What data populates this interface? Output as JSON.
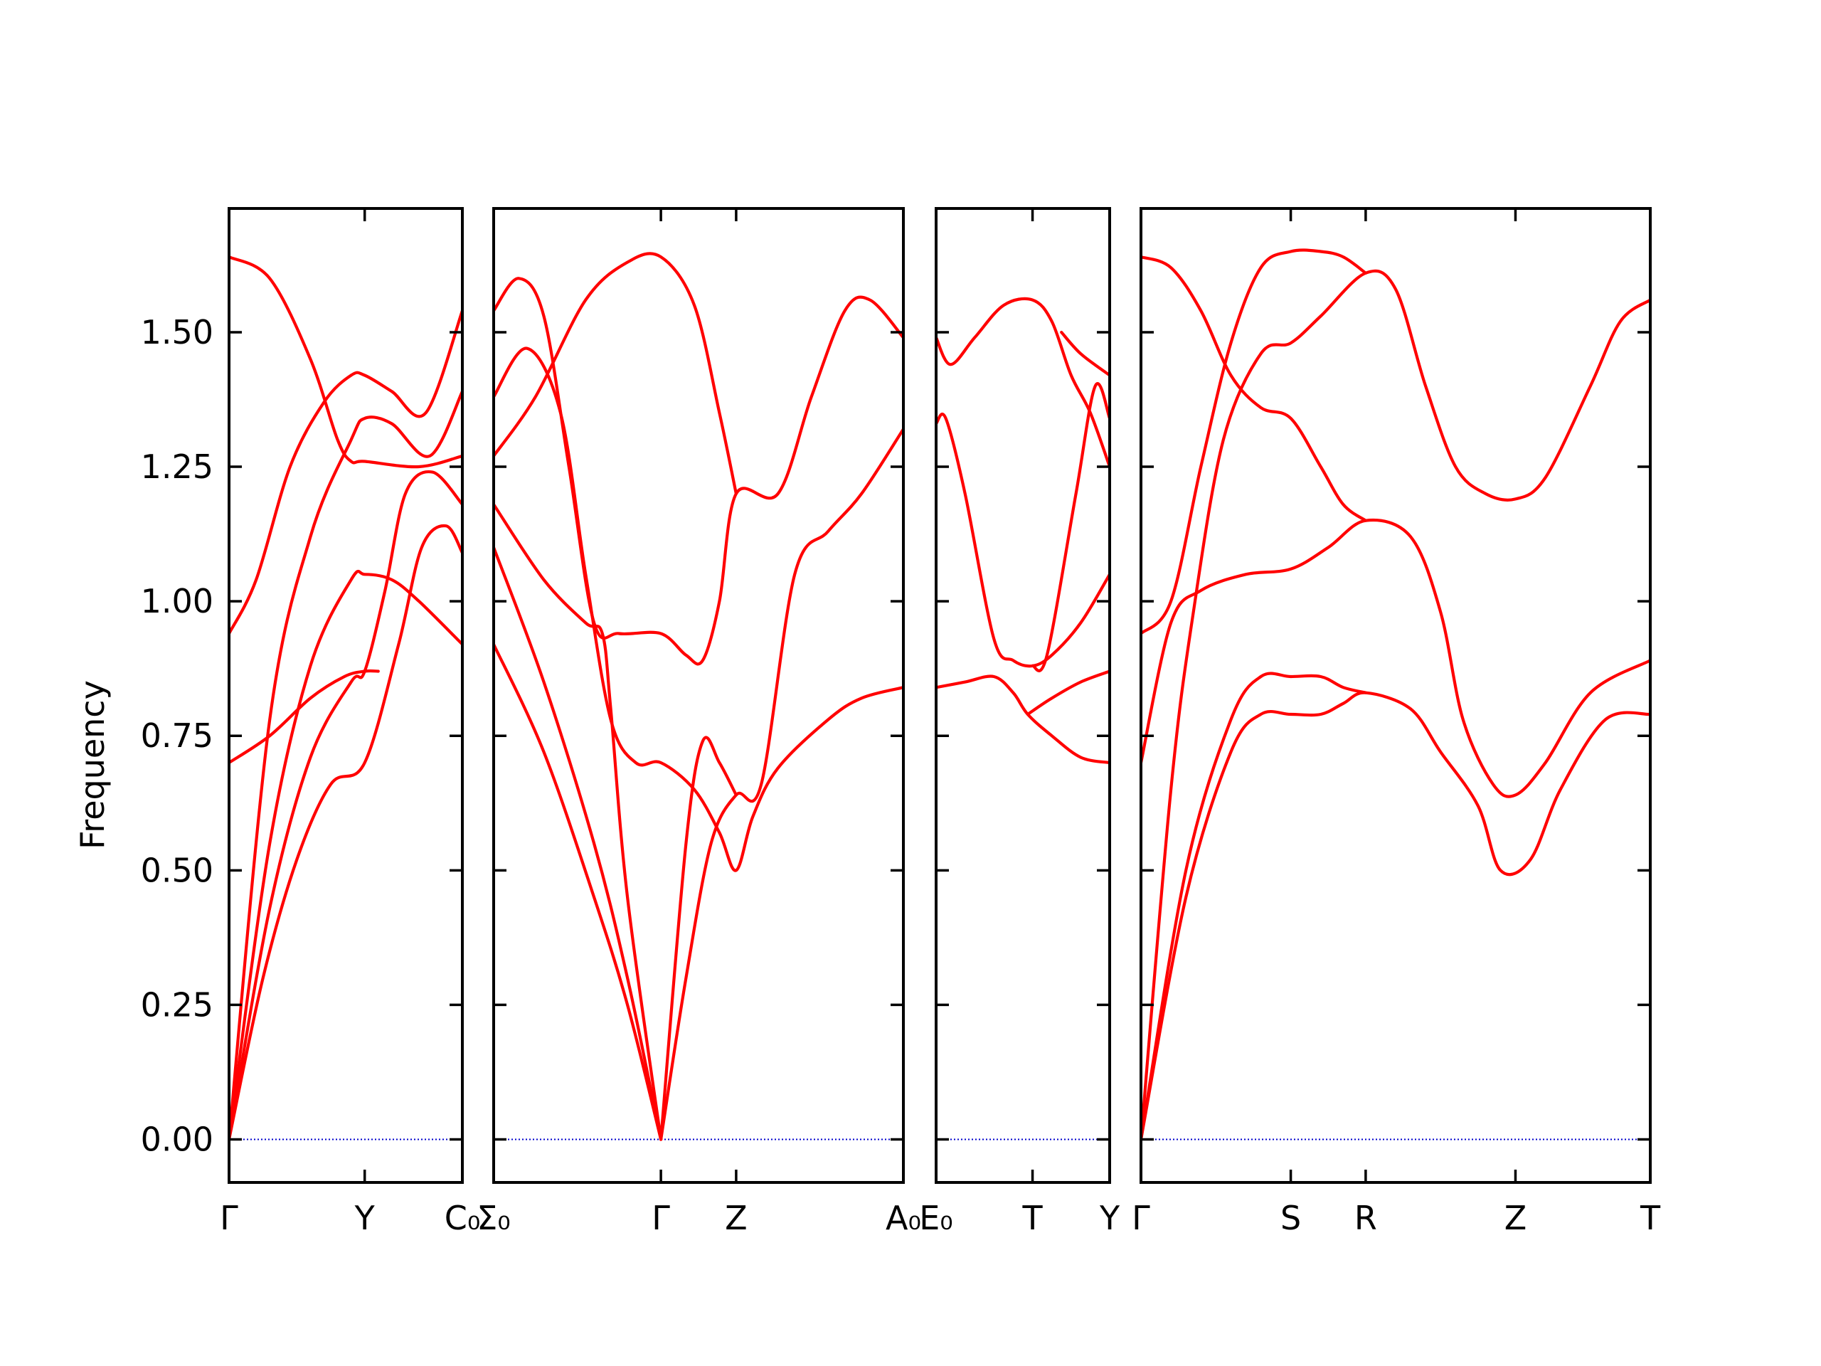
{
  "chart_data": {
    "type": "line",
    "ylabel": "Frequency",
    "ylim": [
      -0.08,
      1.73
    ],
    "yticks": [
      0.0,
      0.25,
      0.5,
      0.75,
      1.0,
      1.25,
      1.5
    ],
    "ytick_labels": [
      "0.00",
      "0.25",
      "0.50",
      "0.75",
      "1.00",
      "1.25",
      "1.50"
    ],
    "band_color": "#ff0000",
    "zero_line_color": "#0000cc",
    "grid": false,
    "segments": [
      {
        "xlim": [
          0,
          1.72
        ],
        "ticks": [
          {
            "x": 0,
            "label": "Γ"
          },
          {
            "x": 1.0,
            "label": "Y"
          },
          {
            "x": 1.72,
            "label": "C₀"
          }
        ],
        "bands": [
          [
            [
              0,
              0
            ],
            [
              0.25,
              0.3
            ],
            [
              0.5,
              0.52
            ],
            [
              0.75,
              0.66
            ],
            [
              1.0,
              0.7
            ],
            [
              1.25,
              0.92
            ],
            [
              1.42,
              1.1
            ],
            [
              1.6,
              1.14
            ],
            [
              1.72,
              1.09
            ]
          ],
          [
            [
              0,
              0
            ],
            [
              0.3,
              0.43
            ],
            [
              0.6,
              0.71
            ],
            [
              0.9,
              0.85
            ],
            [
              1.0,
              0.87
            ],
            [
              1.15,
              1.02
            ],
            [
              1.3,
              1.2
            ],
            [
              1.5,
              1.24
            ],
            [
              1.72,
              1.18
            ]
          ],
          [
            [
              0,
              0
            ],
            [
              0.3,
              0.55
            ],
            [
              0.6,
              0.88
            ],
            [
              0.9,
              1.04
            ],
            [
              1.0,
              1.05
            ],
            [
              1.2,
              1.04
            ],
            [
              1.4,
              1.0
            ],
            [
              1.72,
              0.92
            ]
          ],
          [
            [
              0,
              0
            ],
            [
              0.3,
              0.78
            ],
            [
              0.6,
              1.12
            ],
            [
              0.9,
              1.3
            ],
            [
              1.0,
              1.34
            ],
            [
              1.2,
              1.33
            ],
            [
              1.48,
              1.27
            ],
            [
              1.72,
              1.39
            ]
          ],
          [
            [
              0,
              0.7
            ],
            [
              0.3,
              0.75
            ],
            [
              0.6,
              0.82
            ],
            [
              0.85,
              0.86
            ],
            [
              1.0,
              0.87
            ],
            [
              1.1,
              0.87
            ]
          ],
          [
            [
              0,
              0.94
            ],
            [
              0.2,
              1.04
            ],
            [
              0.45,
              1.25
            ],
            [
              0.7,
              1.37
            ],
            [
              0.9,
              1.42
            ],
            [
              1.0,
              1.42
            ],
            [
              1.2,
              1.39
            ],
            [
              1.45,
              1.35
            ],
            [
              1.72,
              1.54
            ]
          ],
          [
            [
              0,
              1.64
            ],
            [
              0.3,
              1.6
            ],
            [
              0.6,
              1.45
            ],
            [
              0.8,
              1.3
            ],
            [
              0.9,
              1.26
            ],
            [
              1.0,
              1.26
            ],
            [
              1.4,
              1.25
            ],
            [
              1.72,
              1.27
            ]
          ]
        ]
      },
      {
        "xlim": [
          0,
          2.45
        ],
        "ticks": [
          {
            "x": 0,
            "label": "Σ₀"
          },
          {
            "x": 1.0,
            "label": "Γ"
          },
          {
            "x": 1.45,
            "label": "Z"
          },
          {
            "x": 2.45,
            "label": "A₀"
          }
        ],
        "bands": [
          [
            [
              0,
              0.92
            ],
            [
              0.3,
              0.72
            ],
            [
              0.6,
              0.45
            ],
            [
              0.8,
              0.25
            ],
            [
              1.0,
              0
            ]
          ],
          [
            [
              0,
              1.1
            ],
            [
              0.3,
              0.85
            ],
            [
              0.6,
              0.55
            ],
            [
              0.8,
              0.3
            ],
            [
              1.0,
              0
            ]
          ],
          [
            [
              0,
              1.18
            ],
            [
              0.3,
              1.04
            ],
            [
              0.55,
              0.96
            ],
            [
              0.65,
              0.94
            ],
            [
              0.7,
              0.8
            ],
            [
              0.8,
              0.45
            ],
            [
              1.0,
              0
            ]
          ],
          [
            [
              0,
              1.38
            ],
            [
              0.2,
              1.47
            ],
            [
              0.4,
              1.35
            ],
            [
              0.55,
              1.05
            ],
            [
              0.7,
              0.78
            ],
            [
              0.85,
              0.7
            ],
            [
              1.0,
              0.7
            ],
            [
              1.2,
              0.65
            ],
            [
              1.35,
              0.57
            ],
            [
              1.45,
              0.5
            ],
            [
              1.55,
              0.6
            ],
            [
              1.7,
              0.69
            ],
            [
              2.0,
              0.78
            ],
            [
              2.2,
              0.82
            ],
            [
              2.45,
              0.84
            ]
          ],
          [
            [
              0,
              1.54
            ],
            [
              0.15,
              1.6
            ],
            [
              0.3,
              1.53
            ],
            [
              0.45,
              1.25
            ],
            [
              0.6,
              0.96
            ],
            [
              0.75,
              0.94
            ],
            [
              1.0,
              0.94
            ],
            [
              1.15,
              0.9
            ],
            [
              1.25,
              0.89
            ],
            [
              1.35,
              1.0
            ],
            [
              1.45,
              1.2
            ],
            [
              1.7,
              1.2
            ],
            [
              1.9,
              1.38
            ],
            [
              2.1,
              1.54
            ],
            [
              2.25,
              1.56
            ],
            [
              2.45,
              1.49
            ]
          ],
          [
            [
              0,
              1.27
            ],
            [
              0.25,
              1.38
            ],
            [
              0.55,
              1.56
            ],
            [
              0.8,
              1.63
            ],
            [
              1.0,
              1.64
            ],
            [
              1.2,
              1.55
            ],
            [
              1.35,
              1.35
            ],
            [
              1.45,
              1.2
            ]
          ],
          [
            [
              1.0,
              0
            ],
            [
              1.15,
              0.3
            ],
            [
              1.3,
              0.55
            ],
            [
              1.45,
              0.64
            ],
            [
              1.6,
              0.66
            ],
            [
              1.8,
              1.05
            ],
            [
              2.0,
              1.13
            ],
            [
              2.2,
              1.2
            ],
            [
              2.45,
              1.32
            ]
          ],
          [
            [
              1.0,
              0
            ],
            [
              1.15,
              0.55
            ],
            [
              1.25,
              0.74
            ],
            [
              1.35,
              0.7
            ],
            [
              1.45,
              0.64
            ]
          ]
        ]
      },
      {
        "xlim": [
          0,
          1.8
        ],
        "ticks": [
          {
            "x": 0,
            "label": "E₀"
          },
          {
            "x": 1.0,
            "label": "T"
          },
          {
            "x": 1.8,
            "label": "Y"
          }
        ],
        "bands": [
          [
            [
              0,
              0.84
            ],
            [
              0.3,
              0.85
            ],
            [
              0.6,
              0.86
            ],
            [
              0.8,
              0.83
            ],
            [
              0.95,
              0.79
            ],
            [
              1.2,
              0.75
            ],
            [
              1.5,
              0.71
            ],
            [
              1.8,
              0.7
            ]
          ],
          [
            [
              0.95,
              0.79
            ],
            [
              1.2,
              0.82
            ],
            [
              1.5,
              0.85
            ],
            [
              1.8,
              0.87
            ]
          ],
          [
            [
              0,
              1.33
            ],
            [
              0.1,
              1.34
            ],
            [
              0.3,
              1.2
            ],
            [
              0.6,
              0.93
            ],
            [
              0.8,
              0.89
            ],
            [
              1.0,
              0.88
            ],
            [
              1.2,
              0.9
            ],
            [
              1.5,
              0.96
            ],
            [
              1.8,
              1.05
            ]
          ],
          [
            [
              0,
              1.49
            ],
            [
              0.15,
              1.44
            ],
            [
              0.4,
              1.49
            ],
            [
              0.7,
              1.55
            ],
            [
              1.0,
              1.56
            ],
            [
              1.2,
              1.52
            ],
            [
              1.4,
              1.42
            ],
            [
              1.6,
              1.35
            ],
            [
              1.8,
              1.25
            ]
          ],
          [
            [
              1.0,
              0.88
            ],
            [
              1.15,
              0.9
            ],
            [
              1.45,
              1.2
            ],
            [
              1.65,
              1.4
            ],
            [
              1.8,
              1.34
            ]
          ],
          [
            [
              1.3,
              1.5
            ],
            [
              1.5,
              1.46
            ],
            [
              1.8,
              1.42
            ]
          ]
        ]
      },
      {
        "xlim": [
          0,
          3.4
        ],
        "ticks": [
          {
            "x": 0,
            "label": "Γ"
          },
          {
            "x": 1.0,
            "label": "S"
          },
          {
            "x": 1.5,
            "label": "R"
          },
          {
            "x": 2.5,
            "label": "Z"
          },
          {
            "x": 3.4,
            "label": "T"
          }
        ],
        "bands": [
          [
            [
              0,
              0
            ],
            [
              0.3,
              0.45
            ],
            [
              0.6,
              0.72
            ],
            [
              0.8,
              0.79
            ],
            [
              1.0,
              0.79
            ],
            [
              1.2,
              0.79
            ],
            [
              1.35,
              0.81
            ],
            [
              1.5,
              0.83
            ],
            [
              1.8,
              0.8
            ],
            [
              2.0,
              0.72
            ],
            [
              2.25,
              0.62
            ],
            [
              2.4,
              0.5
            ],
            [
              2.6,
              0.52
            ],
            [
              2.8,
              0.65
            ],
            [
              3.1,
              0.78
            ],
            [
              3.4,
              0.79
            ]
          ],
          [
            [
              0,
              0
            ],
            [
              0.3,
              0.5
            ],
            [
              0.6,
              0.78
            ],
            [
              0.8,
              0.86
            ],
            [
              1.0,
              0.86
            ],
            [
              1.2,
              0.86
            ],
            [
              1.35,
              0.84
            ],
            [
              1.5,
              0.83
            ]
          ],
          [
            [
              0,
              0.7
            ],
            [
              0.2,
              0.96
            ],
            [
              0.4,
              1.02
            ],
            [
              0.7,
              1.05
            ],
            [
              1.0,
              1.06
            ],
            [
              1.25,
              1.1
            ],
            [
              1.5,
              1.15
            ],
            [
              1.8,
              1.12
            ],
            [
              2.0,
              0.98
            ],
            [
              2.15,
              0.78
            ],
            [
              2.35,
              0.66
            ],
            [
              2.5,
              0.64
            ],
            [
              2.7,
              0.7
            ],
            [
              3.0,
              0.83
            ],
            [
              3.4,
              0.89
            ]
          ],
          [
            [
              0,
              0
            ],
            [
              0.2,
              0.65
            ],
            [
              0.35,
              0.98
            ],
            [
              0.55,
              1.3
            ],
            [
              0.8,
              1.46
            ],
            [
              1.0,
              1.48
            ],
            [
              1.2,
              1.53
            ],
            [
              1.5,
              1.61
            ],
            [
              1.7,
              1.58
            ],
            [
              1.9,
              1.4
            ],
            [
              2.1,
              1.25
            ],
            [
              2.3,
              1.2
            ],
            [
              2.5,
              1.19
            ],
            [
              2.7,
              1.23
            ],
            [
              3.0,
              1.4
            ],
            [
              3.2,
              1.52
            ],
            [
              3.4,
              1.56
            ]
          ],
          [
            [
              0,
              0.94
            ],
            [
              0.2,
              1.0
            ],
            [
              0.4,
              1.25
            ],
            [
              0.6,
              1.48
            ],
            [
              0.8,
              1.62
            ],
            [
              1.0,
              1.65
            ],
            [
              1.2,
              1.65
            ],
            [
              1.35,
              1.64
            ],
            [
              1.5,
              1.61
            ]
          ],
          [
            [
              0,
              1.64
            ],
            [
              0.2,
              1.62
            ],
            [
              0.4,
              1.54
            ],
            [
              0.6,
              1.42
            ],
            [
              0.8,
              1.36
            ],
            [
              1.0,
              1.34
            ],
            [
              1.2,
              1.25
            ],
            [
              1.35,
              1.18
            ],
            [
              1.5,
              1.15
            ]
          ]
        ]
      }
    ]
  }
}
